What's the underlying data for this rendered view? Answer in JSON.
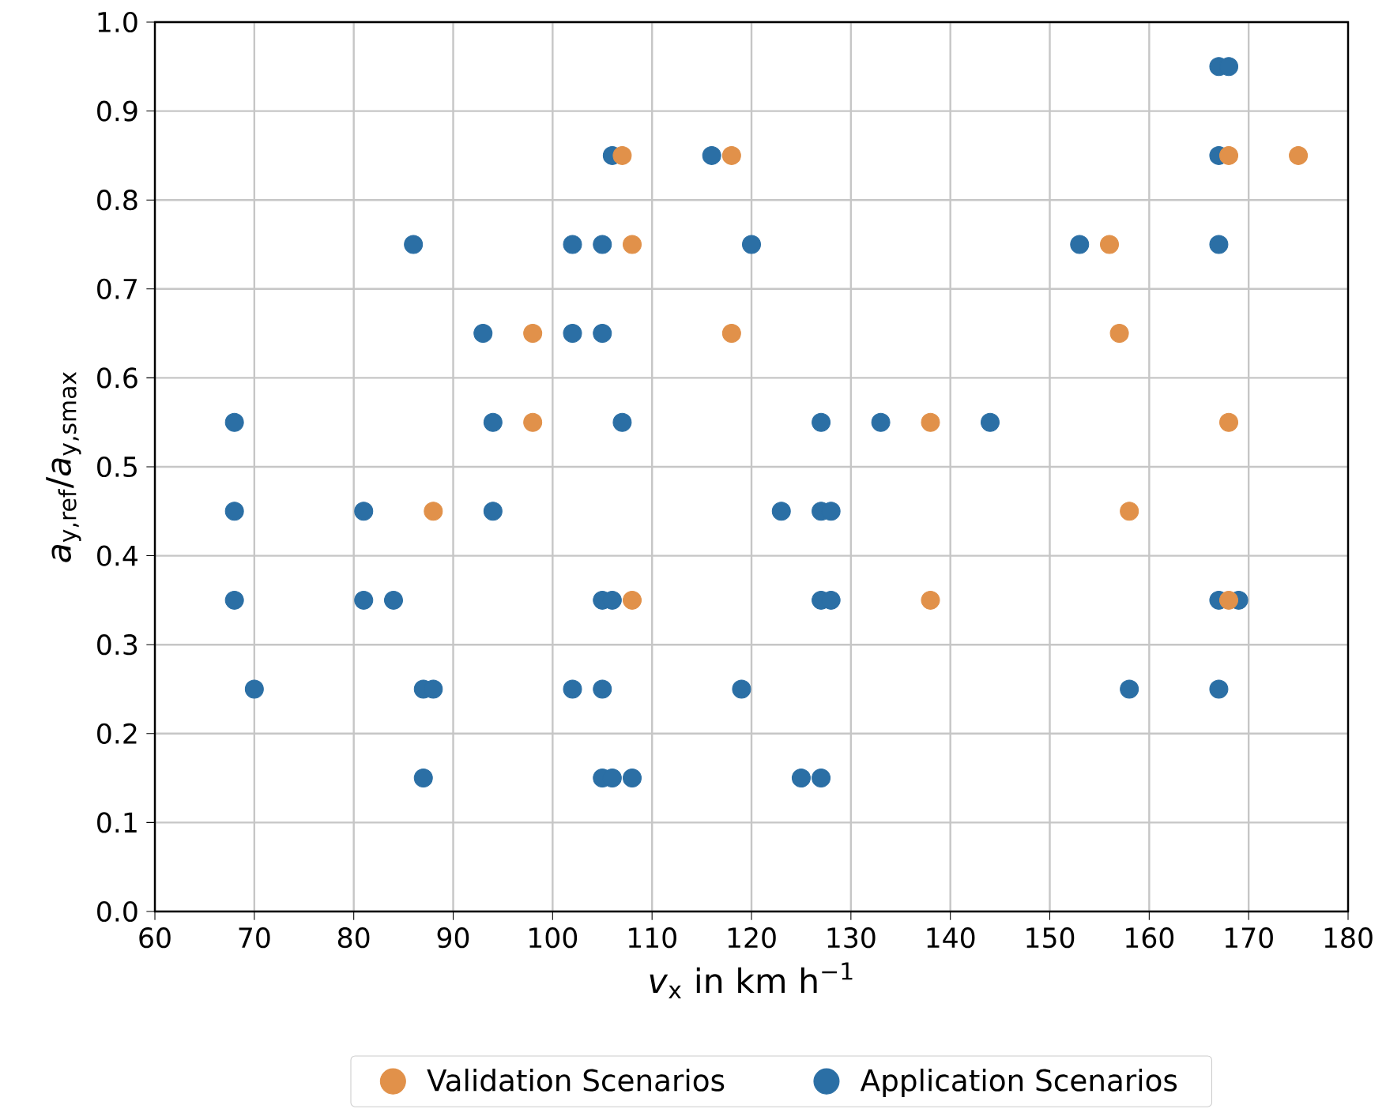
{
  "chart_data": {
    "type": "scatter",
    "xlabel": "*v*$_{x}$ in km h$^{−1}$",
    "ylabel": "*a*$_{y,ref}$/*a*$_{y,smax}$",
    "series": [
      {
        "name": "Validation Scenarios",
        "color": "#e1914a",
        "x": [
          107,
          118,
          108,
          98,
          118,
          98,
          88,
          108,
          138,
          138,
          156,
          157,
          158,
          168,
          175,
          168,
          168
        ],
        "values": [
          0.85,
          0.85,
          0.75,
          0.65,
          0.65,
          0.55,
          0.45,
          0.35,
          0.55,
          0.35,
          0.75,
          0.65,
          0.45,
          0.85,
          0.85,
          0.55,
          0.35
        ]
      },
      {
        "name": "Application Scenarios",
        "color": "#2b6fa5",
        "x": [
          106,
          116,
          86,
          102,
          105,
          120,
          93,
          102,
          105,
          68,
          94,
          107,
          127,
          133,
          144,
          68,
          81,
          94,
          123,
          127,
          128,
          68,
          81,
          84,
          105,
          106,
          127,
          128,
          167,
          169,
          70,
          87,
          88,
          102,
          105,
          119,
          158,
          167,
          87,
          105,
          106,
          108,
          125,
          127,
          167,
          168,
          167,
          167,
          153
        ],
        "values": [
          0.85,
          0.85,
          0.75,
          0.75,
          0.75,
          0.75,
          0.65,
          0.65,
          0.65,
          0.55,
          0.55,
          0.55,
          0.55,
          0.55,
          0.55,
          0.45,
          0.45,
          0.45,
          0.45,
          0.45,
          0.45,
          0.35,
          0.35,
          0.35,
          0.35,
          0.35,
          0.35,
          0.35,
          0.35,
          0.35,
          0.25,
          0.25,
          0.25,
          0.25,
          0.25,
          0.25,
          0.25,
          0.25,
          0.15,
          0.15,
          0.15,
          0.15,
          0.15,
          0.15,
          0.95,
          0.95,
          0.85,
          0.75,
          0.75
        ]
      }
    ],
    "xlim": [
      60,
      180
    ],
    "ylim": [
      0,
      1
    ],
    "xticks": [
      60,
      70,
      80,
      90,
      100,
      110,
      120,
      130,
      140,
      150,
      160,
      170,
      180
    ],
    "yticks": [
      {
        "value": 0,
        "label": "0.0"
      },
      0.1,
      0.2,
      0.3,
      0.4,
      0.5,
      0.6,
      0.7,
      0.8,
      0.9,
      {
        "value": 1,
        "label": "1.0"
      }
    ],
    "grid": true,
    "legend": "bottom"
  }
}
